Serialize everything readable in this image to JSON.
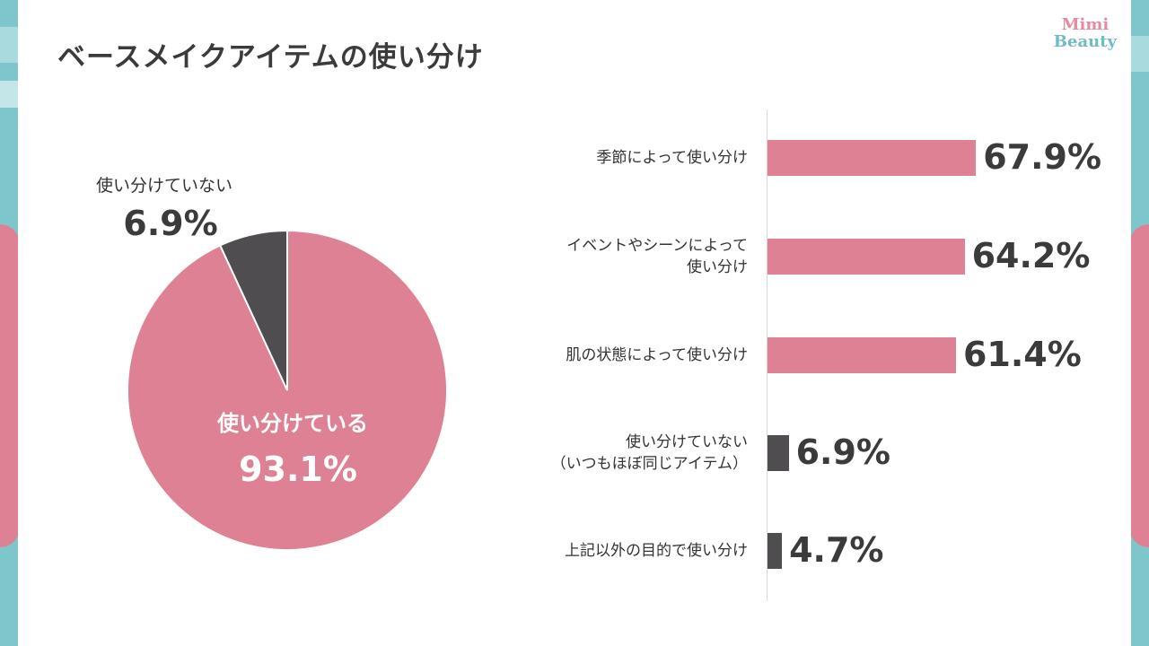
{
  "title": "ベースメイクアイテムの使い分け",
  "logo": {
    "line1": "Mimi",
    "line2": "Beauty"
  },
  "colors": {
    "pink": "#de8194",
    "gray": "#4f4d50",
    "teal": "#7fc6cc",
    "text": "#3b3b3b"
  },
  "chart_data": [
    {
      "type": "pie",
      "slices": [
        {
          "label": "使い分けている",
          "value": 93.1,
          "display": "93.1%",
          "color": "#de8194"
        },
        {
          "label": "使い分けていない",
          "value": 6.9,
          "display": "6.9%",
          "color": "#4f4d50"
        }
      ]
    },
    {
      "type": "bar",
      "orientation": "horizontal",
      "categories": [
        [
          "季節によって使い分け"
        ],
        [
          "イベントやシーンによって",
          "使い分け"
        ],
        [
          "肌の状態によって使い分け"
        ],
        [
          "使い分けていない",
          "（いつもほぼ同じアイテム）"
        ],
        [
          "上記以外の目的で使い分け"
        ]
      ],
      "values": [
        67.9,
        64.2,
        61.4,
        6.9,
        4.7
      ],
      "value_labels": [
        "67.9%",
        "64.2%",
        "61.4%",
        "6.9%",
        "4.7%"
      ],
      "colors": [
        "#de8194",
        "#de8194",
        "#de8194",
        "#4f4d50",
        "#4f4d50"
      ],
      "xlim": [
        0,
        100
      ],
      "grid": false
    }
  ]
}
